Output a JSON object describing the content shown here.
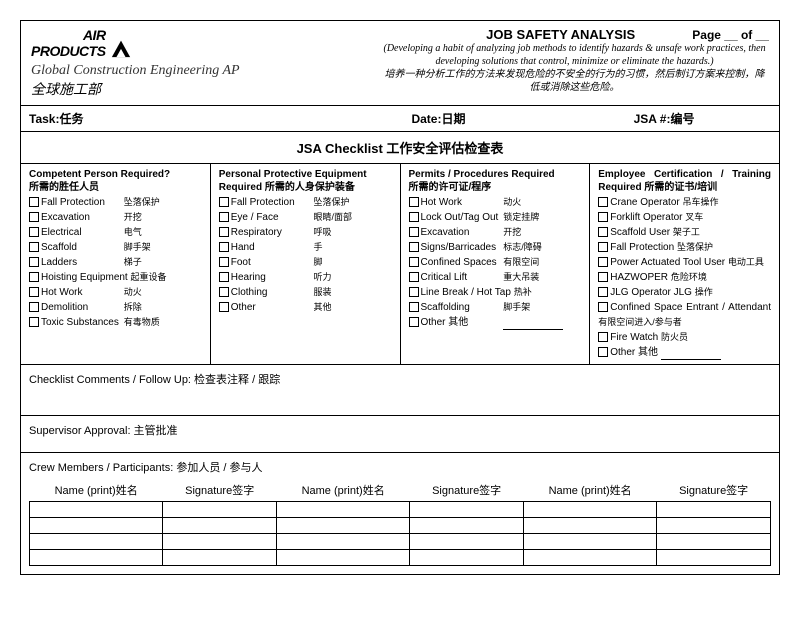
{
  "logo": {
    "line1": "AIR",
    "line2": "PRODUCTS"
  },
  "org_en": "Global Construction Engineering AP",
  "org_cn": "全球施工部",
  "title": "JOB SAFETY ANALYSIS",
  "page_label": "Page __ of __",
  "desc_en": "(Developing a habit of analyzing job methods to identify hazards & unsafe work practices, then developing solutions that control, minimize or eliminate the hazards.)",
  "desc_cn": "培养一种分析工作的方法来发现危险的不安全的行为的习惯，然后制订方案来控制，降低或消除这些危险。",
  "info": {
    "task": "Task:任务",
    "date": "Date:日期",
    "jsa": "JSA #:编号"
  },
  "checklist_title": "JSA Checklist 工作安全评估检查表",
  "cols": {
    "c1": {
      "head": "Competent Person Required?\n所需的胜任人员",
      "items": [
        {
          "en": "Fall Protection",
          "cn": "坠落保护"
        },
        {
          "en": "Excavation",
          "cn": "开挖"
        },
        {
          "en": "Electrical",
          "cn": "电气"
        },
        {
          "en": "Scaffold",
          "cn": "脚手架"
        },
        {
          "en": "Ladders",
          "cn": "梯子"
        },
        {
          "en": "Hoisting Equipment",
          "cn": "起重设备"
        },
        {
          "en": "Hot Work",
          "cn": "动火"
        },
        {
          "en": "Demolition",
          "cn": "拆除"
        },
        {
          "en": "Toxic Substances",
          "cn": "有毒物质"
        }
      ]
    },
    "c2": {
      "head": "Personal Protective Equipment Required  所需的人身保护装备",
      "items": [
        {
          "en": "Fall Protection",
          "cn": "坠落保护"
        },
        {
          "en": "Eye / Face",
          "cn": "眼睛/面部"
        },
        {
          "en": "Respiratory",
          "cn": "呼吸"
        },
        {
          "en": "Hand",
          "cn": "手"
        },
        {
          "en": "Foot",
          "cn": "脚"
        },
        {
          "en": "Hearing",
          "cn": "听力"
        },
        {
          "en": "Clothing",
          "cn": "服装"
        },
        {
          "en": "Other",
          "cn": "其他"
        }
      ]
    },
    "c3": {
      "head": "Permits / Procedures Required\n所需的许可证/程序",
      "items": [
        {
          "en": "Hot Work",
          "cn": "动火"
        },
        {
          "en": "Lock Out/Tag Out",
          "cn": "锁定挂牌"
        },
        {
          "en": "Excavation",
          "cn": "开挖"
        },
        {
          "en": "Signs/Barricades",
          "cn": "标志/障碍"
        },
        {
          "en": "Confined Spaces",
          "cn": "有限空间"
        },
        {
          "en": "Critical Lift",
          "cn": "重大吊装"
        },
        {
          "en": "Line Break / Hot Tap",
          "cn": "热补"
        },
        {
          "en": "Scaffolding",
          "cn": "脚手架"
        },
        {
          "en": "Other   其他",
          "cn": "",
          "blank": true
        }
      ]
    },
    "c4": {
      "head": "Employee Certification / Training Required  所需的证书/培训",
      "items": [
        {
          "en": "Crane Operator",
          "cn": "吊车操作"
        },
        {
          "en": "Forklift Operator",
          "cn": "叉车"
        },
        {
          "en": "Scaffold User",
          "cn": "架子工"
        },
        {
          "en": "Fall Protection",
          "cn": "坠落保护"
        },
        {
          "en": "Power Actuated Tool User",
          "cn": "电动工具"
        },
        {
          "en": "HAZWOPER",
          "cn": "危险环境"
        },
        {
          "en": "JLG Operator JLG",
          "cn": "操作"
        },
        {
          "en": "Confined Space Entrant / Attendant",
          "cn": "有限空间进入/参与者"
        },
        {
          "en": "Fire Watch",
          "cn": "防火员"
        },
        {
          "en": "Other   其他",
          "cn": "",
          "blank": true
        }
      ]
    }
  },
  "comments": "Checklist Comments / Follow Up:  检查表注释  /  跟踪",
  "approval": "Supervisor Approval:  主管批准",
  "crew": "Crew Members / Participants:  参加人员  /  参与人",
  "sig": {
    "name": "Name (print)姓名",
    "signature": "Signature签字",
    "rows": 4
  }
}
